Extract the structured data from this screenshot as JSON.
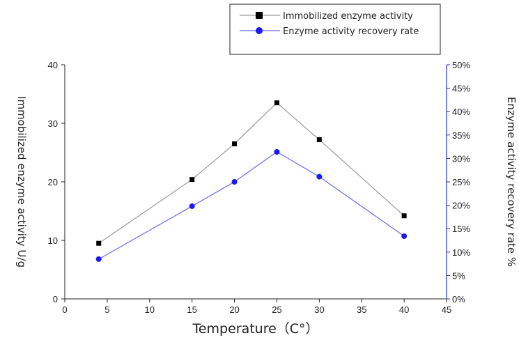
{
  "chart_data": {
    "type": "line",
    "title": "",
    "xlabel": "Temperature（C°）",
    "ylabel": "Immobilized enzyme activity U/g",
    "y2label": "Enzyme activity recovery rate %",
    "x": [
      4,
      15,
      20,
      25,
      30,
      40
    ],
    "xlim": [
      0,
      45
    ],
    "xticks": [
      "0",
      "5",
      "10",
      "15",
      "20",
      "25",
      "30",
      "35",
      "40",
      "45"
    ],
    "ylim": [
      0,
      40
    ],
    "yticks": [
      "0",
      "10",
      "20",
      "30",
      "40"
    ],
    "y2lim": [
      0,
      50
    ],
    "y2ticks": [
      "0%",
      "5%",
      "10%",
      "15%",
      "20%",
      "25%",
      "30%",
      "35%",
      "40%",
      "45%",
      "50%"
    ],
    "grid": false,
    "legend_position": "top-right",
    "series": [
      {
        "name": "Immobilized enzyme activity",
        "axis": "left",
        "marker": "square",
        "marker_color": "#000000",
        "line_color": "#9a9a9a",
        "values": [
          9.5,
          20.4,
          26.5,
          33.5,
          27.2,
          14.2
        ]
      },
      {
        "name": "Enzyme activity recovery rate",
        "axis": "right",
        "marker": "circle",
        "marker_color": "#1a1aee",
        "line_color": "#6a6aee",
        "values": [
          8.5,
          19.8,
          25.0,
          31.4,
          26.1,
          13.4
        ]
      }
    ],
    "right_axis_color": "#2b2bd6"
  }
}
